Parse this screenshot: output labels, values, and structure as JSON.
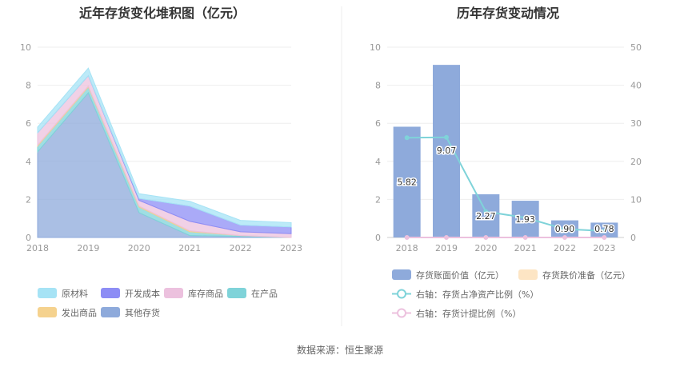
{
  "source": "数据来源：恒生聚源",
  "chart_data": [
    {
      "type": "area",
      "title": "近年存货变化堆积图（亿元）",
      "categories": [
        "2018",
        "2019",
        "2020",
        "2021",
        "2022",
        "2023"
      ],
      "ylim": [
        0,
        10
      ],
      "yticks": [
        "0",
        "2",
        "4",
        "6",
        "8",
        "10"
      ],
      "grid": true,
      "legend_position": "bottom",
      "series": [
        {
          "name": "其他存货",
          "color": "#8eaadb",
          "values": [
            4.5,
            7.6,
            1.3,
            0.1,
            0.05,
            0.0
          ]
        },
        {
          "name": "在产品",
          "color": "#7fd3d9",
          "values": [
            0.3,
            0.3,
            0.3,
            0.2,
            0.05,
            0.0
          ]
        },
        {
          "name": "发出商品",
          "color": "#f5d28e",
          "values": [
            0.05,
            0.05,
            0.05,
            0.05,
            0.0,
            0.0
          ]
        },
        {
          "name": "库存商品",
          "color": "#ecc1de",
          "values": [
            0.65,
            0.55,
            0.3,
            0.5,
            0.2,
            0.2
          ]
        },
        {
          "name": "开发成本",
          "color": "#8d8df5",
          "values": [
            0.0,
            0.0,
            0.1,
            0.8,
            0.35,
            0.35
          ]
        },
        {
          "name": "原材料",
          "color": "#a6e3f5",
          "values": [
            0.3,
            0.4,
            0.25,
            0.25,
            0.25,
            0.23
          ]
        }
      ],
      "legend_order": [
        "原材料",
        "开发成本",
        "库存商品",
        "在产品",
        "发出商品",
        "其他存货"
      ]
    },
    {
      "type": "bar",
      "title": "历年存货变动情况",
      "categories": [
        "2018",
        "2019",
        "2020",
        "2021",
        "2022",
        "2023"
      ],
      "ylim": [
        0,
        10
      ],
      "yticks": [
        "0",
        "2",
        "4",
        "6",
        "8",
        "10"
      ],
      "y2lim": [
        0,
        50
      ],
      "y2ticks": [
        "0",
        "10",
        "20",
        "30",
        "40",
        "50"
      ],
      "grid": true,
      "legend_position": "bottom",
      "series": [
        {
          "name": "存货账面价值（亿元）",
          "type": "bar",
          "axis": "left",
          "color": "#8eaadb",
          "values": [
            5.82,
            9.07,
            2.27,
            1.93,
            0.9,
            0.78
          ],
          "labels": [
            "5.82",
            "9.07",
            "2.27",
            "1.93",
            "0.90",
            "0.78"
          ]
        },
        {
          "name": "存货跌价准备（亿元）",
          "type": "bar",
          "axis": "left",
          "color": "#fde5c4",
          "values": [
            0,
            0,
            0,
            0,
            0,
            0
          ]
        },
        {
          "name": "右轴：存货占净资产比例（%）",
          "type": "line",
          "axis": "right",
          "color": "#7fd3d9",
          "values": [
            26.2,
            26.3,
            6.8,
            5.2,
            2.2,
            1.7
          ]
        },
        {
          "name": "右轴：存货计提比例（%）",
          "type": "line",
          "axis": "right",
          "color": "#ecc1de",
          "values": [
            0,
            0,
            0,
            0,
            0,
            0
          ]
        }
      ]
    }
  ]
}
